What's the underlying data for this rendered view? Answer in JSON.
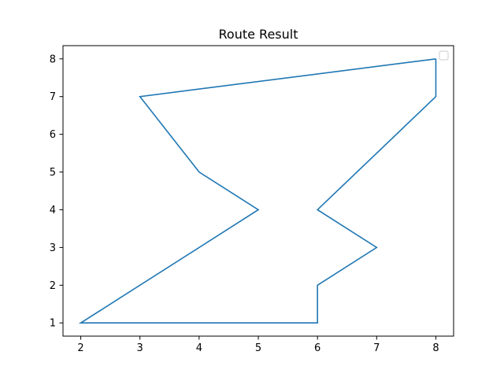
{
  "chart_data": {
    "type": "line",
    "title": "Route Result",
    "xlabel": "",
    "ylabel": "",
    "xlim": [
      1.7,
      8.3
    ],
    "ylim": [
      0.65,
      8.35
    ],
    "xticks": [
      2,
      3,
      4,
      5,
      6,
      7,
      8
    ],
    "yticks": [
      1,
      2,
      3,
      4,
      5,
      6,
      7,
      8
    ],
    "grid": false,
    "legend": {
      "placement": "top-right",
      "entries": []
    },
    "series": [
      {
        "color": "#1f77b4",
        "points": [
          {
            "x": 8,
            "y": 8
          },
          {
            "x": 3,
            "y": 7
          },
          {
            "x": 4,
            "y": 5
          },
          {
            "x": 5,
            "y": 4
          },
          {
            "x": 2,
            "y": 1
          },
          {
            "x": 6,
            "y": 1
          },
          {
            "x": 6,
            "y": 2
          },
          {
            "x": 7,
            "y": 3
          },
          {
            "x": 6,
            "y": 4
          },
          {
            "x": 8,
            "y": 7
          },
          {
            "x": 8,
            "y": 8
          }
        ]
      }
    ]
  }
}
